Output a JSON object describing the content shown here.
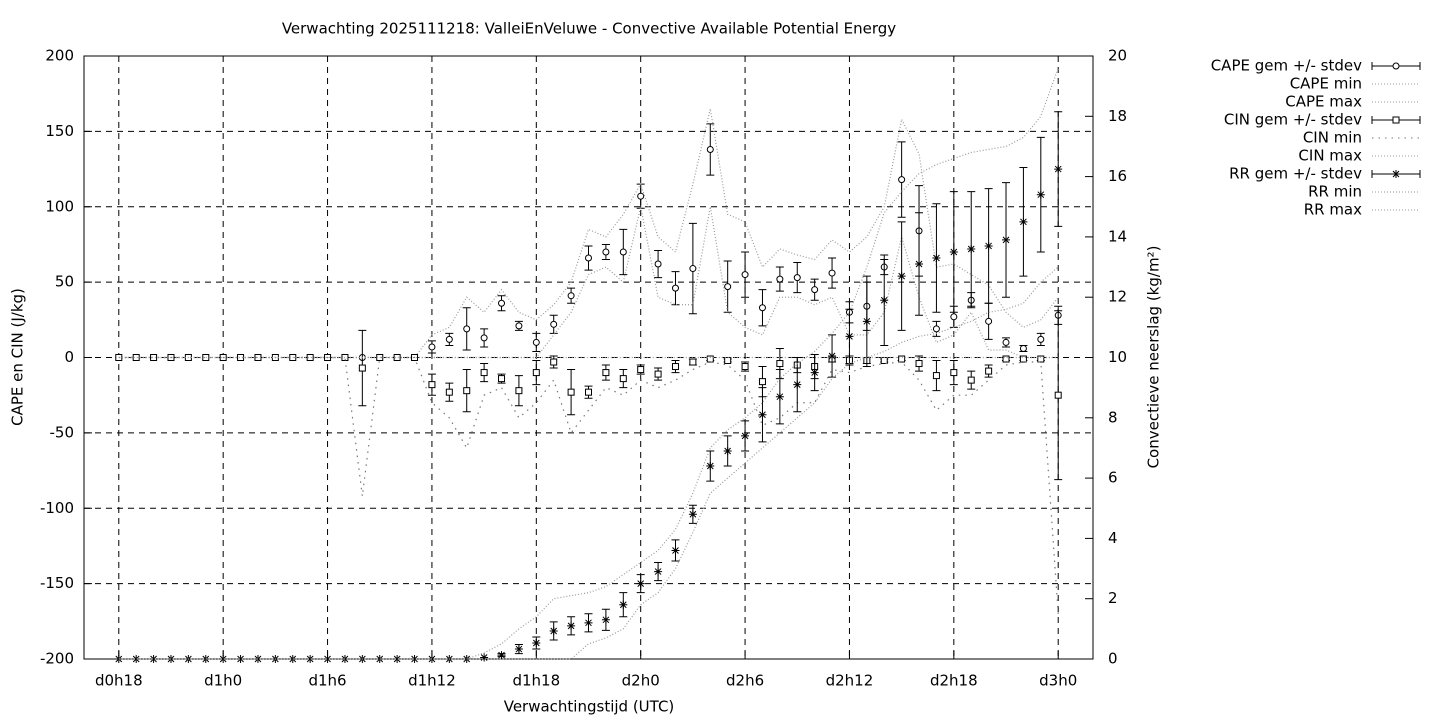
{
  "chart_data": {
    "type": "errorbar-line",
    "title": "Verwachting 2025111218: ValleiEnVeluwe - Convective Available Potential Energy",
    "xlabel": "Verwachtingstijd (UTC)",
    "ylabel": "CAPE en CIN (J/kg)",
    "y2label": "Convectieve neerslag (kg/m²)",
    "x": [
      18,
      19,
      20,
      21,
      22,
      23,
      24,
      25,
      26,
      27,
      28,
      29,
      30,
      31,
      32,
      33,
      34,
      35,
      36,
      37,
      38,
      39,
      40,
      41,
      42,
      43,
      44,
      45,
      46,
      47,
      48,
      49,
      50,
      51,
      52,
      53,
      54,
      55,
      56,
      57,
      58,
      59,
      60,
      61,
      62,
      63,
      64,
      65,
      66,
      67,
      68,
      69,
      70,
      71,
      72
    ],
    "xlim": [
      16,
      74
    ],
    "xticks": [
      {
        "value": 18,
        "label": "d0h18"
      },
      {
        "value": 24,
        "label": "d1h0"
      },
      {
        "value": 30,
        "label": "d1h6"
      },
      {
        "value": 36,
        "label": "d1h12"
      },
      {
        "value": 42,
        "label": "d1h18"
      },
      {
        "value": 48,
        "label": "d2h0"
      },
      {
        "value": 54,
        "label": "d2h6"
      },
      {
        "value": 60,
        "label": "d2h12"
      },
      {
        "value": 66,
        "label": "d2h18"
      },
      {
        "value": 72,
        "label": "d3h0"
      }
    ],
    "ylim": [
      -200,
      200
    ],
    "yticks": [
      -200,
      -150,
      -100,
      -50,
      0,
      50,
      100,
      150,
      200
    ],
    "y2lim": [
      0,
      20
    ],
    "y2ticks": [
      0,
      2,
      4,
      6,
      8,
      10,
      12,
      14,
      16,
      18,
      20
    ],
    "grid": true,
    "legend": "top-right",
    "series": [
      {
        "name": "CAPE gem +/- stdev",
        "style": "errorbar",
        "marker": "circle",
        "color": "#000000",
        "values": [
          0,
          0,
          0,
          0,
          0,
          0,
          0,
          0,
          0,
          0,
          0,
          0,
          0,
          0,
          0,
          0,
          0,
          0,
          7,
          12,
          19,
          13,
          36,
          21,
          10,
          22,
          41,
          66,
          70,
          70,
          107,
          62,
          46,
          59,
          138,
          47,
          55,
          33,
          52,
          53,
          45,
          56,
          30,
          34,
          60,
          118,
          84,
          19,
          27,
          38,
          24,
          10,
          6,
          12,
          28
        ],
        "errors": [
          0,
          0,
          0,
          0,
          0,
          0,
          0,
          0,
          0,
          0,
          0,
          0,
          0,
          0,
          0,
          0,
          0,
          0,
          4,
          4,
          14,
          6,
          5,
          3,
          6,
          6,
          5,
          8,
          5,
          15,
          8,
          9,
          11,
          30,
          17,
          17,
          15,
          12,
          8,
          10,
          7,
          10,
          7,
          16,
          5,
          25,
          30,
          5,
          7,
          5,
          12,
          3,
          2,
          4,
          6
        ]
      },
      {
        "name": "CAPE min",
        "style": "dotted",
        "color": "#999999",
        "values": [
          0,
          0,
          0,
          0,
          0,
          0,
          0,
          0,
          0,
          0,
          0,
          0,
          0,
          0,
          0,
          0,
          0,
          0,
          0,
          0,
          0,
          0,
          0,
          0,
          0,
          15,
          30,
          55,
          60,
          50,
          100,
          40,
          35,
          35,
          100,
          30,
          20,
          15,
          40,
          40,
          35,
          40,
          15,
          15,
          30,
          80,
          40,
          10,
          15,
          30,
          5,
          5,
          0,
          0,
          0
        ]
      },
      {
        "name": "CAPE max",
        "style": "dotted",
        "color": "#999999",
        "values": [
          0,
          0,
          0,
          0,
          0,
          0,
          0,
          0,
          0,
          0,
          0,
          0,
          0,
          0,
          0,
          0,
          0,
          0,
          15,
          20,
          40,
          30,
          45,
          30,
          25,
          35,
          50,
          85,
          80,
          95,
          115,
          80,
          70,
          115,
          165,
          95,
          90,
          60,
          72,
          68,
          65,
          78,
          70,
          80,
          100,
          158,
          135,
          60,
          62,
          55,
          48,
          30,
          20,
          25,
          40
        ]
      },
      {
        "name": "CIN gem +/- stdev",
        "style": "errorbar",
        "marker": "square",
        "color": "#000000",
        "values": [
          0,
          0,
          0,
          0,
          0,
          0,
          0,
          0,
          0,
          0,
          0,
          0,
          0,
          0,
          -7,
          0,
          0,
          0,
          -18,
          -23,
          -22,
          -10,
          -14,
          -22,
          -10,
          -3,
          -23,
          -23,
          -10,
          -14,
          -8,
          -11,
          -6,
          -3,
          -1,
          -2,
          -6,
          -16,
          -4,
          -5,
          -6,
          -1,
          -2,
          -2,
          -2,
          -1,
          -4,
          -12,
          -10,
          -15,
          -9,
          -1,
          -1,
          -1,
          -25
        ],
        "errors": [
          0,
          0,
          0,
          0,
          0,
          0,
          0,
          0,
          0,
          0,
          0,
          0,
          0,
          0,
          25,
          0,
          0,
          0,
          7,
          6,
          14,
          6,
          3,
          10,
          8,
          4,
          15,
          4,
          5,
          6,
          3,
          4,
          4,
          2,
          1,
          1,
          3,
          10,
          10,
          5,
          8,
          2,
          3,
          2,
          1,
          1,
          5,
          10,
          8,
          6,
          4,
          1,
          1,
          1,
          56
        ]
      },
      {
        "name": "CIN min",
        "style": "sparse-dotted",
        "color": "#777777",
        "values": [
          0,
          0,
          0,
          0,
          0,
          0,
          0,
          0,
          0,
          0,
          0,
          0,
          0,
          0,
          -92,
          0,
          0,
          0,
          -30,
          -40,
          -60,
          -25,
          -20,
          -40,
          -30,
          -15,
          -50,
          -35,
          -20,
          -25,
          -15,
          -20,
          -15,
          -8,
          -3,
          -5,
          -15,
          -45,
          -40,
          -30,
          -30,
          -8,
          -10,
          -6,
          -4,
          -3,
          -15,
          -35,
          -25,
          -25,
          -15,
          -5,
          -3,
          -3,
          -170
        ]
      },
      {
        "name": "CIN max",
        "style": "dotted",
        "color": "#999999",
        "values": [
          0,
          0,
          0,
          0,
          0,
          0,
          0,
          0,
          0,
          0,
          0,
          0,
          0,
          0,
          0,
          0,
          0,
          0,
          0,
          0,
          0,
          0,
          0,
          0,
          0,
          0,
          0,
          0,
          0,
          0,
          0,
          0,
          0,
          0,
          0,
          0,
          0,
          0,
          0,
          0,
          0,
          0,
          0,
          0,
          0,
          0,
          0,
          0,
          0,
          0,
          0,
          0,
          0,
          0,
          0
        ]
      },
      {
        "name": "RR gem +/- stdev",
        "style": "errorbar",
        "marker": "star",
        "color": "#000000",
        "axis": "y2",
        "values": [
          0,
          0,
          0,
          0,
          0,
          0,
          0,
          0,
          0,
          0,
          0,
          0,
          0,
          0,
          0,
          0,
          0,
          0,
          0,
          0,
          0,
          0.05,
          0.13,
          0.33,
          0.53,
          0.93,
          1.1,
          1.2,
          1.3,
          1.8,
          2.5,
          2.9,
          3.6,
          4.8,
          6.4,
          6.9,
          7.4,
          8.1,
          8.7,
          9.1,
          9.5,
          10.05,
          10.7,
          11.2,
          11.9,
          12.7,
          13.1,
          13.3,
          13.5,
          13.6,
          13.7,
          13.9,
          14.5,
          15.4,
          16.25
        ],
        "errors": [
          0,
          0,
          0,
          0,
          0,
          0,
          0,
          0,
          0,
          0,
          0,
          0,
          0,
          0,
          0,
          0,
          0,
          0,
          0,
          0,
          0,
          0,
          0.05,
          0.15,
          0.2,
          0.3,
          0.3,
          0.3,
          0.35,
          0.4,
          0.3,
          0.3,
          0.35,
          0.3,
          0.5,
          0.5,
          0.5,
          0.9,
          0.9,
          0.9,
          0.6,
          0.7,
          0.9,
          1.5,
          1.5,
          1.8,
          1.7,
          1.8,
          2,
          1.9,
          1.9,
          1.9,
          1.8,
          1.9,
          1.9
        ]
      },
      {
        "name": "RR min",
        "style": "dotted",
        "color": "#999999",
        "axis": "y2",
        "values": [
          0,
          0,
          0,
          0,
          0,
          0,
          0,
          0,
          0,
          0,
          0,
          0,
          0,
          0,
          0,
          0,
          0,
          0,
          0,
          0,
          0,
          0,
          0,
          0,
          0,
          0,
          0,
          0.5,
          0.7,
          1,
          1.8,
          2.2,
          3,
          4.2,
          5.5,
          6,
          6.5,
          7,
          7.5,
          8,
          8.5,
          9.3,
          9.8,
          10,
          10.2,
          10.5,
          10.7,
          10.8,
          11,
          11.2,
          11.5,
          11.6,
          11.8,
          12.5,
          13
        ]
      },
      {
        "name": "RR max",
        "style": "dotted",
        "color": "#999999",
        "axis": "y2",
        "values": [
          0,
          0,
          0,
          0,
          0,
          0,
          0,
          0,
          0,
          0,
          0,
          0,
          0,
          0,
          0,
          0,
          0,
          0,
          0,
          0,
          0,
          0.2,
          0.5,
          1,
          1.4,
          2,
          2.1,
          2.2,
          2.4,
          2.8,
          3.2,
          3.6,
          4.3,
          5.5,
          7,
          7.6,
          8,
          8.5,
          9.3,
          9.8,
          10.2,
          10.8,
          11.5,
          13,
          14.8,
          15.5,
          16.1,
          16.4,
          16.6,
          16.8,
          16.9,
          17,
          17.3,
          18,
          19.6
        ]
      }
    ]
  }
}
